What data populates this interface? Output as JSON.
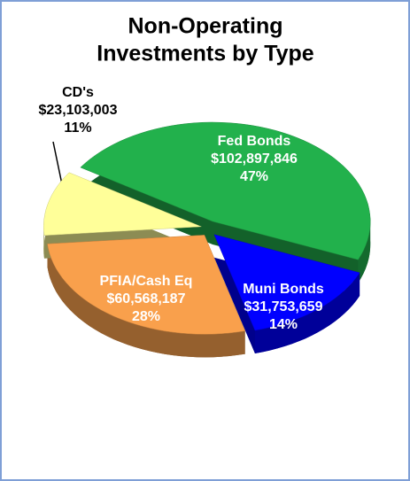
{
  "chart_data": {
    "type": "pie",
    "title": [
      "Non-Operating",
      "Investments by Type"
    ],
    "categories": [
      "Fed Bonds",
      "Muni Bonds",
      "PFIA/Cash Eq",
      "CD's"
    ],
    "values": [
      102897846,
      31753659,
      60568187,
      23103003
    ],
    "value_labels": [
      "$102,897,846",
      "$31,753,659",
      "$60,568,187",
      "$23,103,003"
    ],
    "percent_labels": [
      "47%",
      "14%",
      "28%",
      "11%"
    ],
    "colors": [
      "#22b14c",
      "#0000ff",
      "#f9a04c",
      "#ffff99"
    ]
  }
}
